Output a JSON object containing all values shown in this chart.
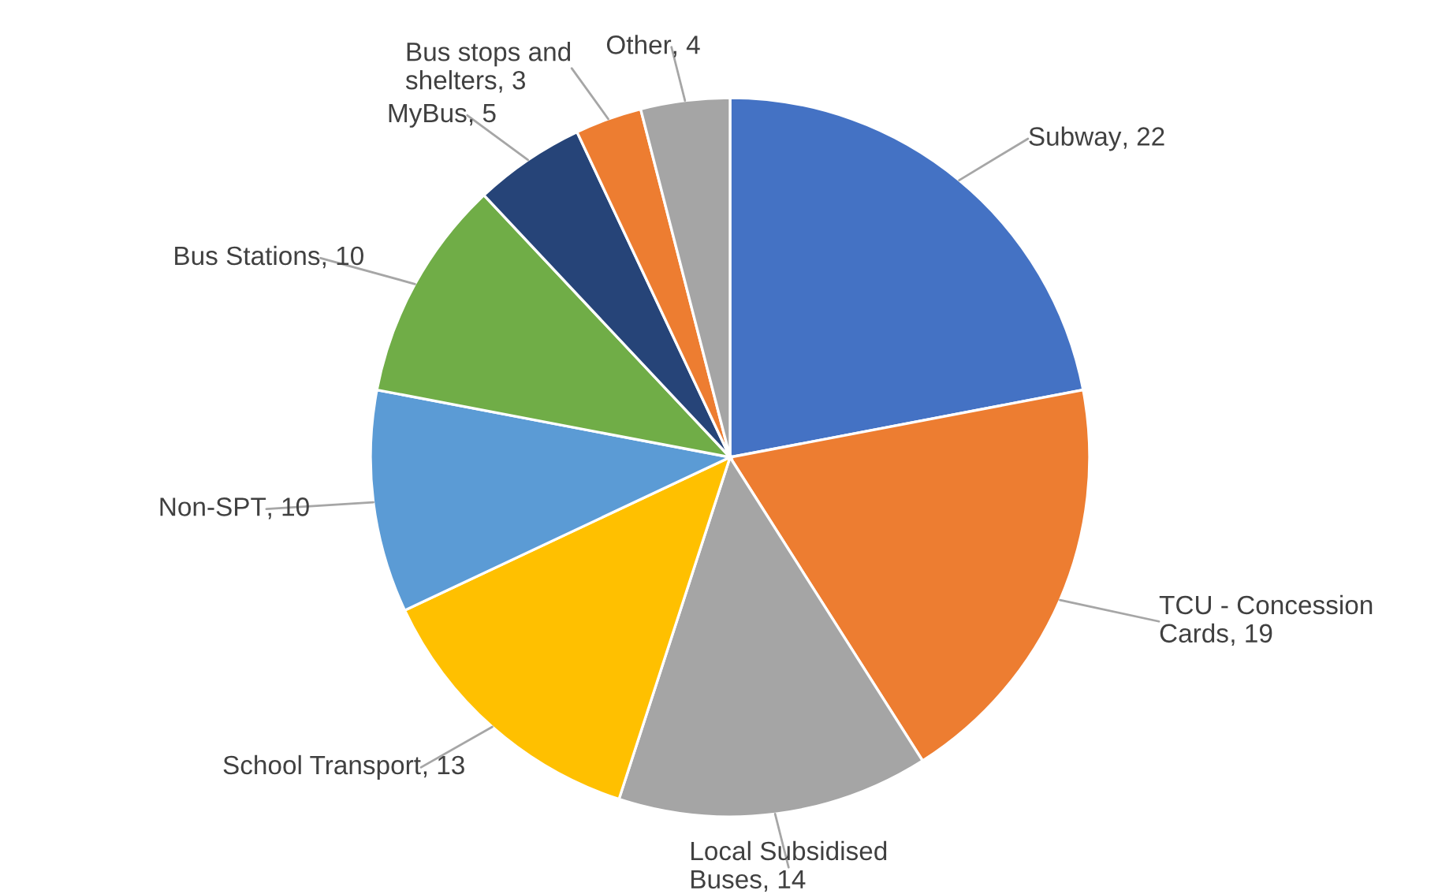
{
  "chart_data": {
    "type": "pie",
    "categories": [
      "Subway",
      "TCU - Concession\nCards",
      "Local Subsidised\nBuses",
      "School Transport",
      "Non-SPT",
      "Bus Stations",
      "MyBus",
      "Bus stops and\nshelters",
      "Other"
    ],
    "values": [
      22,
      19,
      14,
      13,
      10,
      10,
      5,
      3,
      4
    ],
    "value_labels": [
      ", 22",
      ", 19",
      ", 14",
      ", 13",
      ", 10",
      ", 10",
      ", 5",
      ", 3",
      ", 4"
    ],
    "colors": [
      "#4472c4",
      "#ed7d31",
      "#a5a5a5",
      "#ffc000",
      "#5b9bd5",
      "#70ad47",
      "#264478",
      "#ed7d31",
      "#a5a5a5"
    ]
  }
}
